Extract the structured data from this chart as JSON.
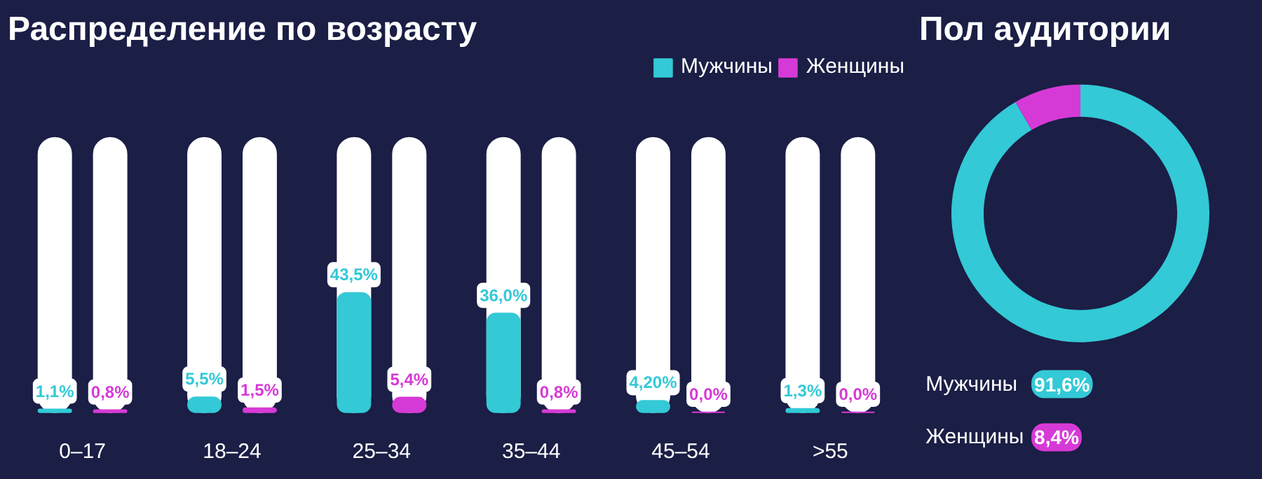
{
  "chart_data": [
    {
      "type": "bar",
      "title": "Распределение по возрасту",
      "categories": [
        "0–17",
        "18–24",
        "25–34",
        "35–44",
        "45–54",
        ">55"
      ],
      "ylim": [
        0,
        100
      ],
      "tick_labels": "x",
      "grid": false,
      "legend": "top right",
      "series": [
        {
          "name": "Мужчины",
          "color": "#33c9d6",
          "values": [
            1.1,
            5.5,
            43.5,
            36.0,
            4.2,
            1.3
          ],
          "value_labels": [
            "1,1%",
            "5,5%",
            "43,5%",
            "36,0%",
            "4,20%",
            "1,3%"
          ]
        },
        {
          "name": "Женщины",
          "color": "#d63ad6",
          "values": [
            0.8,
            1.5,
            5.4,
            0.8,
            0.0,
            0.0
          ],
          "value_labels": [
            "0,8%",
            "1,5%",
            "5,4%",
            "0,8%",
            "0,0%",
            "0,0%"
          ]
        }
      ]
    },
    {
      "type": "donut",
      "title": "Пол аудитории",
      "categories": [
        "Мужчины",
        "Женщины"
      ],
      "values": [
        91.6,
        8.4
      ],
      "colors": [
        "#33c9d6",
        "#d63ad6"
      ],
      "value_labels": [
        "91,6%",
        "8,4%"
      ],
      "legend": "bottom"
    }
  ]
}
